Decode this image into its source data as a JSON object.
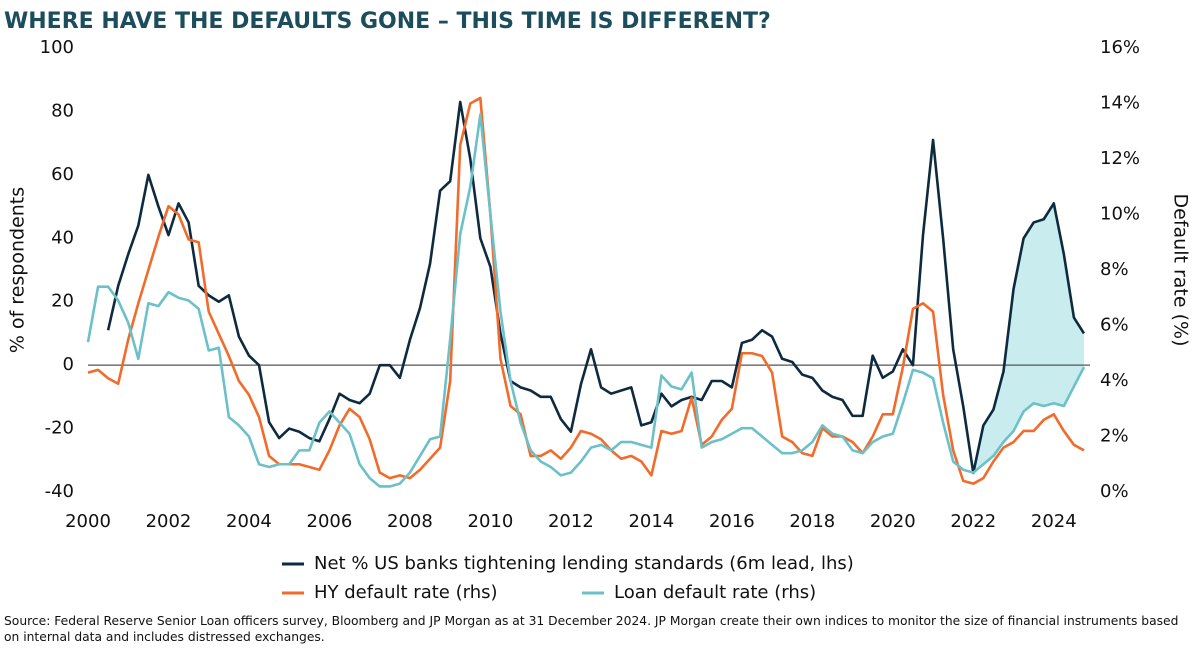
{
  "chart_data": {
    "type": "line",
    "title": "WHERE HAVE THE DEFAULTS GONE – THIS TIME IS DIFFERENT?",
    "ylabel": "% of respondents",
    "y2label": "Default rate (%)",
    "source": "Source: Federal Reserve Senior Loan officers survey, Bloomberg and JP Morgan as at 31 December 2024. JP Morgan create their own indices to monitor the size of financial instruments based on internal data and includes distressed exchanges.",
    "xlim": [
      2000,
      2024.9
    ],
    "xticks": [
      2000,
      2002,
      2004,
      2006,
      2008,
      2010,
      2012,
      2014,
      2016,
      2018,
      2020,
      2022,
      2024
    ],
    "ylim": [
      -40,
      100
    ],
    "yticks": [
      -40,
      -20,
      0,
      20,
      40,
      60,
      80,
      100
    ],
    "y2lim": [
      0,
      16
    ],
    "y2ticks": [
      {
        "value": 0,
        "label": "0%"
      },
      {
        "value": 2,
        "label": "2%"
      },
      {
        "value": 4,
        "label": "4%"
      },
      {
        "value": 6,
        "label": "6%"
      },
      {
        "value": 8,
        "label": "8%"
      },
      {
        "value": 10,
        "label": "10%"
      },
      {
        "value": 12,
        "label": "12%"
      },
      {
        "value": 14,
        "label": "14%"
      },
      {
        "value": 16,
        "label": "16%"
      }
    ],
    "grid": false,
    "legend": "bottom",
    "shade_color": "#c9ecef",
    "x": [
      2000,
      2000.25,
      2000.5,
      2000.75,
      2001,
      2001.25,
      2001.5,
      2001.75,
      2002,
      2002.25,
      2002.5,
      2002.75,
      2003,
      2003.25,
      2003.5,
      2003.75,
      2004,
      2004.25,
      2004.5,
      2004.75,
      2005,
      2005.25,
      2005.5,
      2005.75,
      2006,
      2006.25,
      2006.5,
      2006.75,
      2007,
      2007.25,
      2007.5,
      2007.75,
      2008,
      2008.25,
      2008.5,
      2008.75,
      2009,
      2009.25,
      2009.5,
      2009.75,
      2010,
      2010.25,
      2010.5,
      2010.75,
      2011,
      2011.25,
      2011.5,
      2011.75,
      2012,
      2012.25,
      2012.5,
      2012.75,
      2013,
      2013.25,
      2013.5,
      2013.75,
      2014,
      2014.25,
      2014.5,
      2014.75,
      2015,
      2015.25,
      2015.5,
      2015.75,
      2016,
      2016.25,
      2016.5,
      2016.75,
      2017,
      2017.25,
      2017.5,
      2017.75,
      2018,
      2018.25,
      2018.5,
      2018.75,
      2019,
      2019.25,
      2019.5,
      2019.75,
      2020,
      2020.25,
      2020.5,
      2020.75,
      2021,
      2021.25,
      2021.5,
      2021.75,
      2022,
      2022.25,
      2022.5,
      2022.75,
      2023,
      2023.25,
      2023.5,
      2023.75,
      2024,
      2024.25,
      2024.5,
      2024.75
    ],
    "series": [
      {
        "name": "Net % US banks tightening lending standards (6m lead, lhs)",
        "color": "#0d2a3f",
        "axis": "y",
        "values": [
          null,
          null,
          11,
          25,
          35,
          44,
          60,
          50,
          41,
          51,
          45,
          25,
          22,
          20,
          22,
          9,
          3,
          0,
          -18,
          -23,
          -20,
          -21,
          -23,
          -24,
          -17,
          -9,
          -11,
          -12,
          -9,
          0,
          0,
          -4,
          8,
          18,
          32,
          55,
          58,
          83,
          65,
          40,
          31,
          10,
          -5,
          -7,
          -8,
          -10,
          -10,
          -17,
          -21,
          -6,
          5,
          -7,
          -9,
          -8,
          -7,
          -19,
          -18,
          -9,
          -13,
          -11,
          -10,
          -11,
          -5,
          -5,
          -7,
          7,
          8,
          11,
          9,
          2,
          1,
          -3,
          -4,
          -8,
          -10,
          -11,
          -16,
          -16,
          3,
          -4,
          -2,
          5,
          0,
          41,
          71,
          40,
          5,
          -13,
          -34,
          -19,
          -14,
          -2,
          24,
          40,
          45,
          46,
          51,
          35,
          15,
          10
        ]
      },
      {
        "name": "HY default rate (rhs)",
        "color": "#f26b2a",
        "axis": "y2",
        "values": [
          4.3,
          4.4,
          4.1,
          3.9,
          5.5,
          6.8,
          8.0,
          9.2,
          10.3,
          10.0,
          9.1,
          9.0,
          6.5,
          5.7,
          4.9,
          4.0,
          3.5,
          2.7,
          1.3,
          1.0,
          1.0,
          1.0,
          0.9,
          0.8,
          1.5,
          2.4,
          3.0,
          2.7,
          1.9,
          0.7,
          0.5,
          0.6,
          0.5,
          0.8,
          1.2,
          1.6,
          4.0,
          12.5,
          14.0,
          14.2,
          10.0,
          4.8,
          3.1,
          2.8,
          1.3,
          1.3,
          1.5,
          1.2,
          1.6,
          2.2,
          2.1,
          1.9,
          1.5,
          1.2,
          1.3,
          1.1,
          0.6,
          2.2,
          2.1,
          2.2,
          3.4,
          1.7,
          2.0,
          2.6,
          3.0,
          5.0,
          5.0,
          4.9,
          4.3,
          2.0,
          1.8,
          1.4,
          1.3,
          2.3,
          2.0,
          2.0,
          1.8,
          1.4,
          2.0,
          2.8,
          2.8,
          4.5,
          6.6,
          6.8,
          6.5,
          3.5,
          1.5,
          0.4,
          0.3,
          0.5,
          1.1,
          1.6,
          1.8,
          2.2,
          2.2,
          2.6,
          2.8,
          2.2,
          1.7,
          1.5
        ]
      },
      {
        "name": "Loan default rate (rhs)",
        "color": "#6cc0c8",
        "axis": "y2",
        "values": [
          5.4,
          7.4,
          7.4,
          6.9,
          6.1,
          4.8,
          6.8,
          6.7,
          7.2,
          7.0,
          6.9,
          6.6,
          5.1,
          5.2,
          2.7,
          2.4,
          2.0,
          1.0,
          0.9,
          1.0,
          1.0,
          1.5,
          1.5,
          2.5,
          2.9,
          2.5,
          2.1,
          1.0,
          0.5,
          0.2,
          0.2,
          0.3,
          0.7,
          1.3,
          1.9,
          2.0,
          5.5,
          9.3,
          11.0,
          13.6,
          10.0,
          6.5,
          4.0,
          2.5,
          1.5,
          1.1,
          0.9,
          0.6,
          0.7,
          1.1,
          1.6,
          1.7,
          1.5,
          1.8,
          1.8,
          1.7,
          1.6,
          4.2,
          3.8,
          3.7,
          4.3,
          1.6,
          1.8,
          1.9,
          2.1,
          2.3,
          2.3,
          2.0,
          1.7,
          1.4,
          1.4,
          1.5,
          1.8,
          2.4,
          2.1,
          2.0,
          1.5,
          1.4,
          1.8,
          2.0,
          2.1,
          3.2,
          4.4,
          4.3,
          4.1,
          2.5,
          1.1,
          0.8,
          0.7,
          1.0,
          1.3,
          1.8,
          2.2,
          2.9,
          3.2,
          3.1,
          3.2,
          3.1,
          3.8,
          4.5
        ]
      }
    ]
  }
}
